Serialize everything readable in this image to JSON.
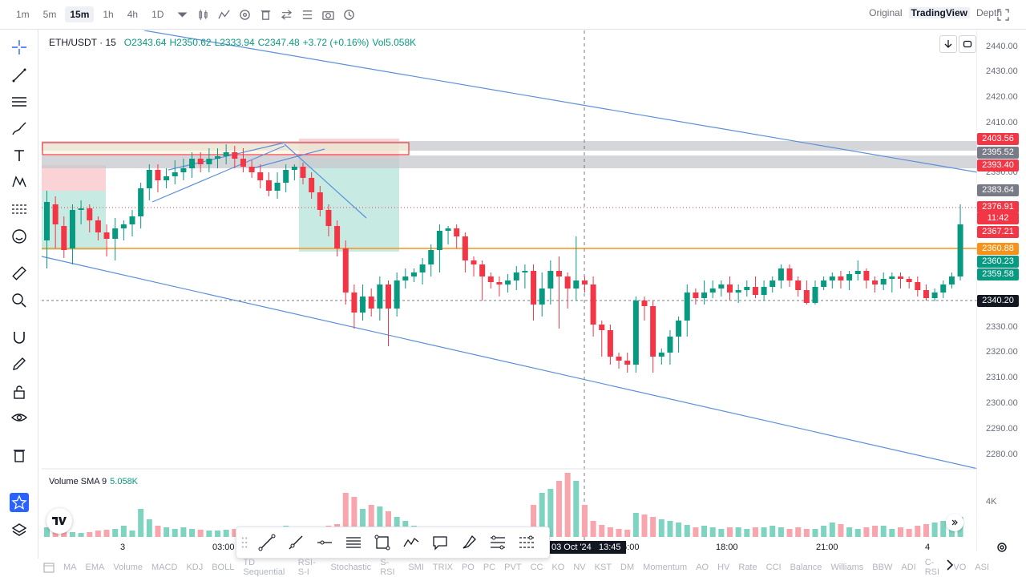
{
  "timeframes": [
    "1m",
    "5m",
    "15m",
    "1h",
    "4h",
    "1D"
  ],
  "active_timeframe": "15m",
  "views": [
    "Original",
    "TradingView",
    "Depth"
  ],
  "active_view": "TradingView",
  "legend": {
    "symbol": "ETH/USDT · 15",
    "open": "O2343.64",
    "high": "H2350.62",
    "low": "L2333.94",
    "close": "C2347.48",
    "change": "+3.72 (+0.16%)",
    "vol": "Vol5.058K"
  },
  "volume_legend": {
    "label": "Volume SMA 9",
    "value": "5.058K"
  },
  "price_axis": [
    "2440.00",
    "2430.00",
    "2420.00",
    "2410.00",
    "2390.00",
    "2330.00",
    "2320.00",
    "2310.00",
    "2300.00",
    "2290.00",
    "2280.00"
  ],
  "volume_axis": "4K",
  "price_labels": [
    {
      "text": "2403.56",
      "color": "#f23645"
    },
    {
      "text": "2395.52",
      "color": "#787b86"
    },
    {
      "text": "2393.40",
      "color": "#f23645"
    },
    {
      "text": "2383.64",
      "color": "#787b86"
    },
    {
      "text": "2376.91",
      "color": "#f23645"
    },
    {
      "text": "11:42",
      "color": "#f23645"
    },
    {
      "text": "2367.21",
      "color": "#f23645"
    },
    {
      "text": "2360.88",
      "color": "#f7931a"
    },
    {
      "text": "2360.23",
      "color": "#089981"
    },
    {
      "text": "2359.58",
      "color": "#089981"
    },
    {
      "text": "2340.20",
      "color": "#131722"
    }
  ],
  "time_axis": [
    "3",
    "03:00",
    "15:00",
    "18:00",
    "21:00",
    "4"
  ],
  "crosshair_time": "03 Oct '24   13:45",
  "indicators": [
    "MA",
    "EMA",
    "Volume",
    "MACD",
    "KDJ",
    "BOLL",
    "TD Sequential",
    "RSI-S-I",
    "Stochastic",
    "S-RSI",
    "SMI",
    "TRIX",
    "PO",
    "PC",
    "PVT",
    "CC",
    "KO",
    "NV",
    "KST",
    "DM",
    "Momentum",
    "AO",
    "HV",
    "Rate",
    "CCI",
    "Balance",
    "Williams",
    "BBW",
    "ADI",
    "C-RSI",
    "VO",
    "ASI"
  ],
  "colors": {
    "up": "#089981",
    "down": "#f23645",
    "level": "#f7931a",
    "channel": "#5b8fd9"
  }
}
